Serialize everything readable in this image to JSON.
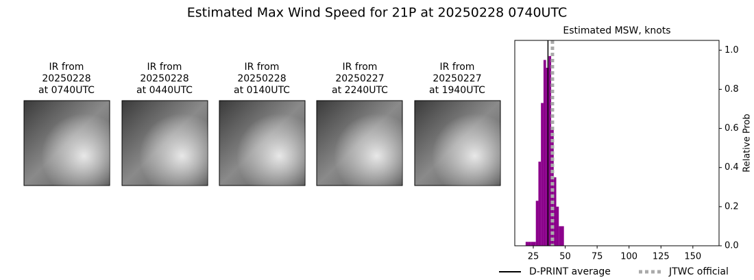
{
  "title": "Estimated Max Wind Speed for 21P at 20250228 0740UTC",
  "panels": [
    {
      "lines": [
        "IR from",
        "20250228",
        "at 0740UTC"
      ]
    },
    {
      "lines": [
        "IR from",
        "20250228",
        "at 0440UTC"
      ]
    },
    {
      "lines": [
        "IR from",
        "20250228",
        "at 0140UTC"
      ]
    },
    {
      "lines": [
        "IR from",
        "20250227",
        "at 2240UTC"
      ]
    },
    {
      "lines": [
        "IR from",
        "20250227",
        "at 1940UTC"
      ]
    }
  ],
  "chart_data": {
    "type": "histogram",
    "title": "Estimated MSW, knots",
    "y_label": "Relative Prob",
    "bins": [
      19,
      21,
      23,
      25,
      27,
      29,
      31,
      33,
      35,
      37,
      39,
      41,
      43,
      45,
      47,
      49
    ],
    "counts": [
      0.02,
      0.02,
      0.02,
      0.02,
      0.23,
      0.43,
      0.73,
      0.95,
      0.91,
      0.97,
      0.6,
      0.35,
      0.2,
      0.1,
      0.1
    ],
    "color": "#8b008b",
    "lines": [
      {
        "name": "D-PRINT average",
        "value": 36.5,
        "color": "#000000",
        "style": "solid"
      },
      {
        "name": "JTWC official",
        "value": 40,
        "color": "#aaaaaa",
        "style": "dotted"
      }
    ],
    "xlim": [
      10.5,
      170.5
    ],
    "xticks": [
      25,
      50,
      75,
      100,
      125,
      150
    ],
    "ylim": [
      0,
      1.05
    ],
    "yticks": [
      {
        "value": 0,
        "label": "0.0"
      },
      0.2,
      0.4,
      0.6,
      0.8,
      {
        "value": 1,
        "label": "1.0"
      }
    ]
  }
}
